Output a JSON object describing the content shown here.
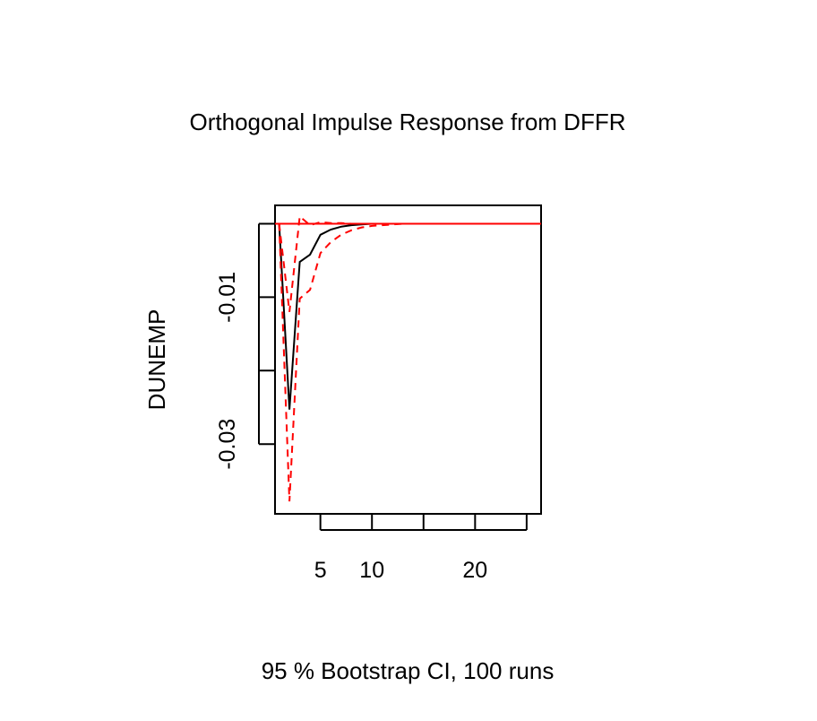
{
  "chart_data": {
    "type": "line",
    "title": "Orthogonal Impulse Response from DFFR",
    "ylabel": "DUNEMP",
    "xlabel": "",
    "footer": "95 % Bootstrap CI,  100 runs",
    "x": [
      1,
      2,
      3,
      4,
      5,
      6,
      7,
      8,
      9,
      10,
      11,
      12,
      13,
      14,
      15,
      16,
      17,
      18,
      19,
      20,
      21,
      22,
      23,
      24,
      25,
      26
    ],
    "xlim": [
      0.6,
      26.4
    ],
    "ylim": [
      -0.0395,
      0.0025
    ],
    "xticks": [
      5,
      10,
      15,
      20,
      25
    ],
    "xtick_labels": [
      "5",
      "10",
      "",
      "20",
      ""
    ],
    "yticks": [
      0,
      -0.01,
      -0.02,
      -0.03
    ],
    "ytick_labels": [
      "",
      "-0.01",
      "",
      "-0.03"
    ],
    "zero_line_color": "#ff0000",
    "series": [
      {
        "role": "response",
        "color": "#000000",
        "dashed": false,
        "values": [
          0,
          -0.0253,
          -0.0052,
          -0.0042,
          -0.0015,
          -0.0008,
          -0.0004,
          -0.0002,
          -0.0001,
          0,
          0,
          0,
          0,
          0,
          0,
          0,
          0,
          0,
          0,
          0,
          0,
          0,
          0,
          0,
          0,
          0
        ]
      },
      {
        "role": "lower",
        "color": "#ff0000",
        "dashed": true,
        "values": [
          0,
          -0.0378,
          -0.0102,
          -0.009,
          -0.004,
          -0.0025,
          -0.0015,
          -0.0009,
          -0.0005,
          -0.0003,
          -0.0002,
          -0.0001,
          0,
          0,
          0,
          0,
          0,
          0,
          0,
          0,
          0,
          0,
          0,
          0,
          0,
          0
        ]
      },
      {
        "role": "upper",
        "color": "#ff0000",
        "dashed": true,
        "values": [
          0,
          -0.012,
          0.001,
          -0.0002,
          0.0002,
          0.0001,
          0.0001,
          0,
          0,
          0,
          0,
          0,
          0,
          0,
          0,
          0,
          0,
          0,
          0,
          0,
          0,
          0,
          0,
          0,
          0,
          0
        ]
      }
    ]
  }
}
